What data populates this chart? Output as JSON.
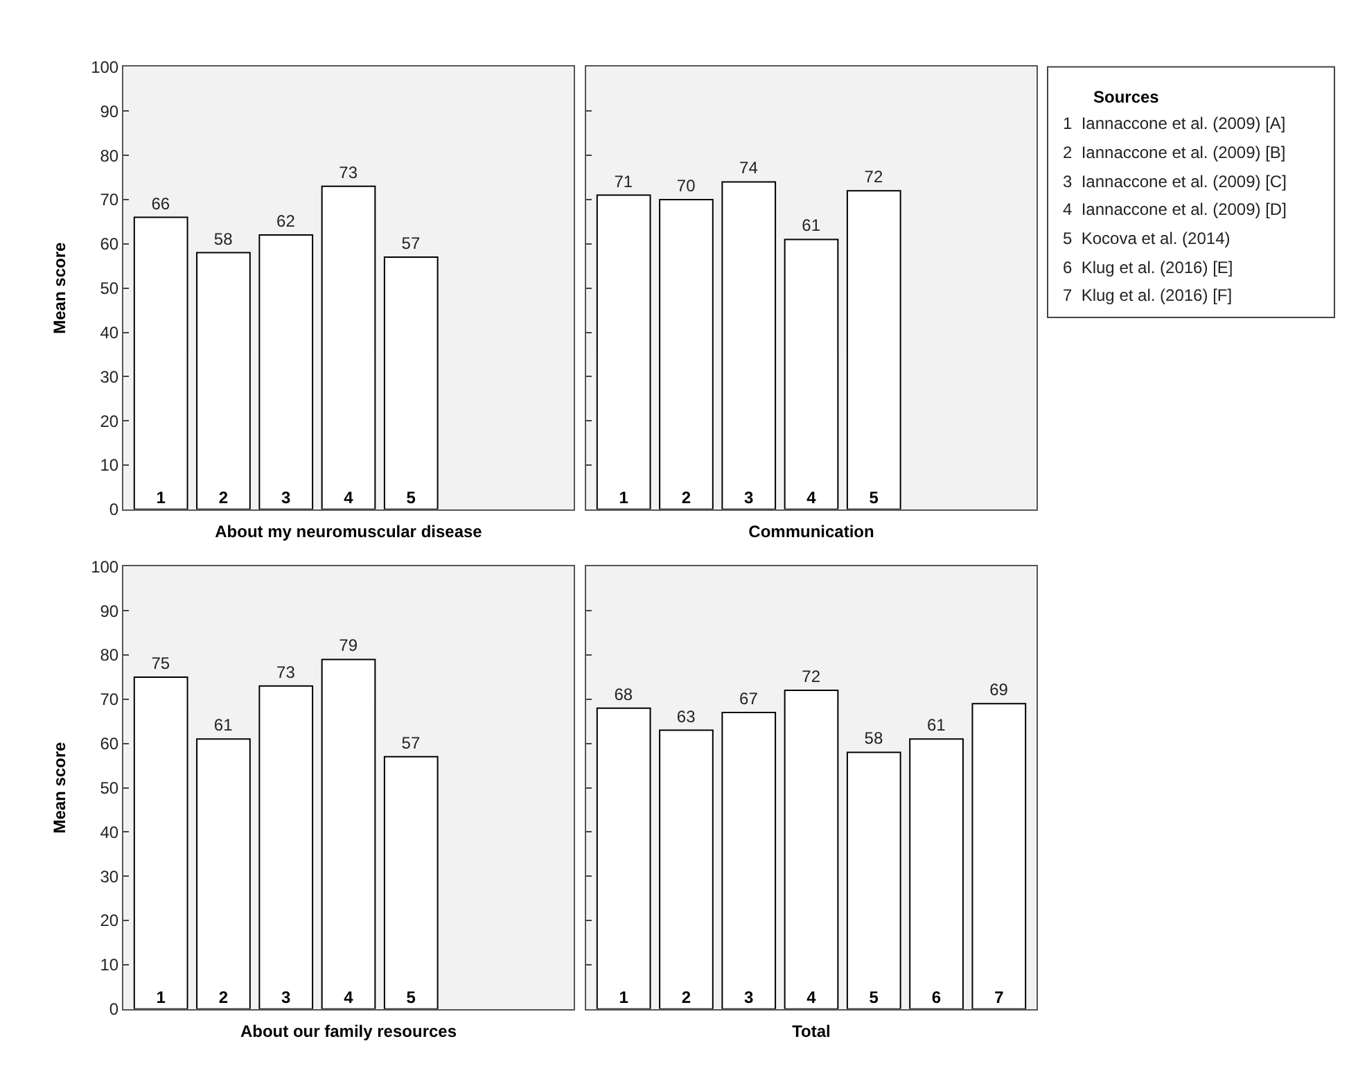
{
  "chart_data": [
    {
      "type": "bar",
      "xlabel": "About my neuromuscular disease",
      "ylabel": "Mean score",
      "categories": [
        "1",
        "2",
        "3",
        "4",
        "5"
      ],
      "values": [
        66,
        58,
        62,
        73,
        57
      ],
      "color": "#ffffff",
      "ylim": [
        0,
        100
      ],
      "yticks": [
        0,
        10,
        20,
        30,
        40,
        50,
        60,
        70,
        80,
        90,
        100
      ],
      "data_labels": true,
      "grid": false
    },
    {
      "type": "bar",
      "xlabel": "Communication",
      "categories": [
        "1",
        "2",
        "3",
        "4",
        "5"
      ],
      "values": [
        71,
        70,
        74,
        61,
        72
      ],
      "color": "#ffffff",
      "ylim": [
        0,
        100
      ],
      "yticks": [
        0,
        10,
        20,
        30,
        40,
        50,
        60,
        70,
        80,
        90,
        100
      ],
      "data_labels": true,
      "grid": false,
      "tick_labels": "x"
    },
    {
      "type": "bar",
      "xlabel": "About our family resources",
      "ylabel": "Mean score",
      "categories": [
        "1",
        "2",
        "3",
        "4",
        "5"
      ],
      "values": [
        75,
        61,
        73,
        79,
        57
      ],
      "color": "#ffffff",
      "ylim": [
        0,
        100
      ],
      "yticks": [
        0,
        10,
        20,
        30,
        40,
        50,
        60,
        70,
        80,
        90,
        100
      ],
      "data_labels": true,
      "grid": false
    },
    {
      "type": "bar",
      "xlabel": "Total",
      "categories": [
        "1",
        "2",
        "3",
        "4",
        "5",
        "6",
        "7"
      ],
      "values": [
        68,
        63,
        67,
        72,
        58,
        61,
        69
      ],
      "color": "#ffffff",
      "ylim": [
        0,
        100
      ],
      "yticks": [
        0,
        10,
        20,
        30,
        40,
        50,
        60,
        70,
        80,
        90,
        100
      ],
      "data_labels": true,
      "grid": false,
      "tick_labels": "x"
    },
    {
      "type": "other",
      "title": "Sources",
      "annotations": [
        "1  Iannaccone et al. (2009) [A]",
        "2  Iannaccone et al. (2009) [B]",
        "3  Iannaccone et al. (2009) [C]",
        "4  Iannaccone et al. (2009) [D]",
        "5  Kocova et al. (2014)",
        "6  Klug et al. (2016) [E]",
        "7  Klug et al. (2016) [F]"
      ]
    }
  ]
}
